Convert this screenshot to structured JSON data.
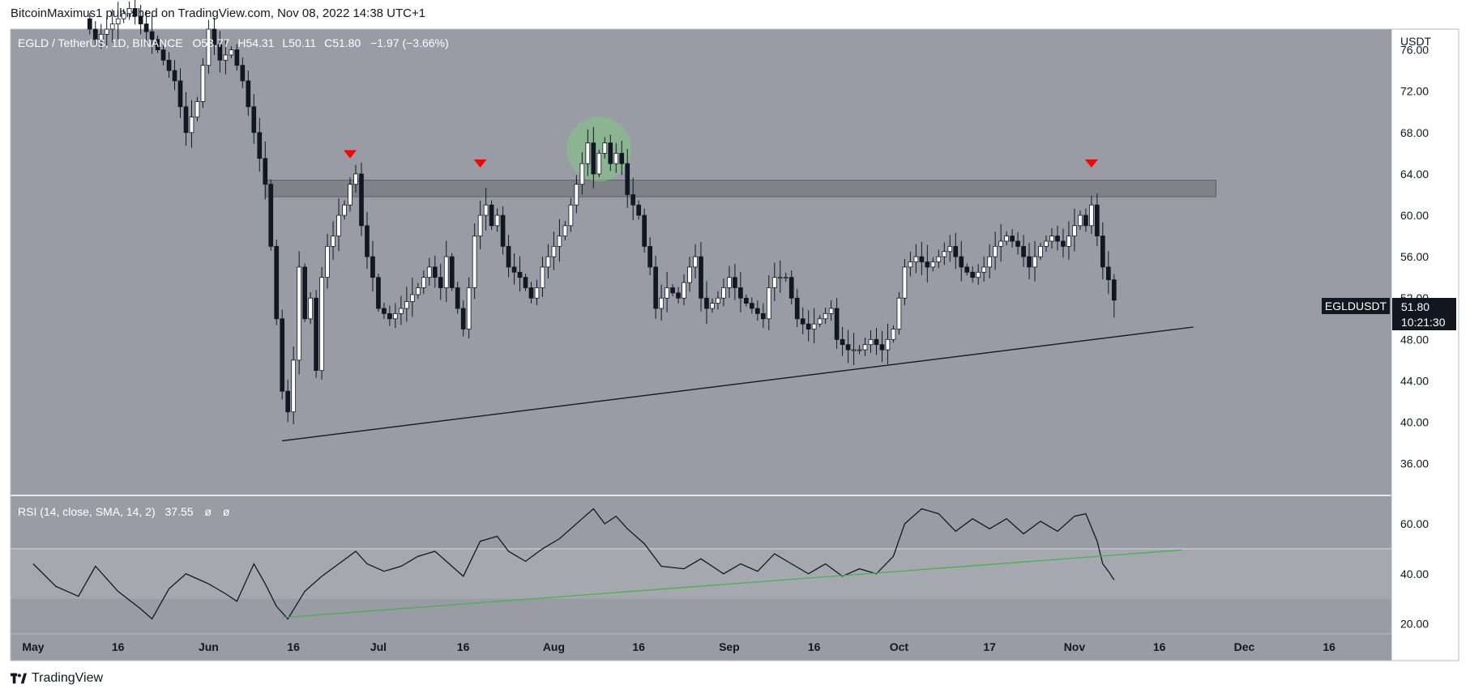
{
  "header": {
    "published_line": "BitcoinMaximus1 published on TradingView.com, Nov 08, 2022 14:38 UTC+1"
  },
  "footer": {
    "brand": "TradingView"
  },
  "legend": {
    "symbol": "EGLD / TetherUS, 1D, BINANCE",
    "ohlc": [
      {
        "key": "O",
        "value": "53.77"
      },
      {
        "key": "H",
        "value": "54.31"
      },
      {
        "key": "L",
        "value": "50.11"
      },
      {
        "key": "C",
        "value": "51.80"
      }
    ],
    "change": "−1.97 (−3.66%)"
  },
  "price_axis": {
    "currency": "USDT"
  },
  "last_price": {
    "symbol": "EGLDUSDT",
    "price": "51.80",
    "countdown": "10:21:30"
  },
  "rsi_legend": {
    "label": "RSI (14, close, SMA, 14, 2)",
    "value": "37.55",
    "extra": [
      "ø",
      "ø"
    ]
  },
  "colors": {
    "plot_bg": "#999ca4",
    "rsi_band": "#a5a8af",
    "up_candle": "#ffffff",
    "down_candle": "#131722",
    "resistance_zone": "#7b7e85",
    "marker_red": "#ff0000",
    "highlight_green": "#81c784",
    "rsi_trendline": "#4caf50"
  },
  "chart_data": [
    {
      "type": "candlestick",
      "title": "EGLD / TetherUS, 1D, BINANCE",
      "x_range": [
        "2022-04-27",
        "2022-12-27"
      ],
      "x_ticks": [
        {
          "date": "2022-05-01",
          "label": "May"
        },
        {
          "date": "2022-05-16",
          "label": "16"
        },
        {
          "date": "2022-06-01",
          "label": "Jun"
        },
        {
          "date": "2022-06-16",
          "label": "16"
        },
        {
          "date": "2022-07-01",
          "label": "Jul"
        },
        {
          "date": "2022-07-16",
          "label": "16"
        },
        {
          "date": "2022-08-01",
          "label": "Aug"
        },
        {
          "date": "2022-08-16",
          "label": "16"
        },
        {
          "date": "2022-09-01",
          "label": "Sep"
        },
        {
          "date": "2022-09-16",
          "label": "16"
        },
        {
          "date": "2022-10-01",
          "label": "Oct"
        },
        {
          "date": "2022-10-17",
          "label": "17"
        },
        {
          "date": "2022-11-01",
          "label": "Nov"
        },
        {
          "date": "2022-11-16",
          "label": "16"
        },
        {
          "date": "2022-12-01",
          "label": "Dec"
        },
        {
          "date": "2022-12-16",
          "label": "16"
        }
      ],
      "y_range": [
        33,
        78
      ],
      "y_ticks": [
        "36.00",
        "40.00",
        "44.00",
        "48.00",
        "52.00",
        "56.00",
        "60.00",
        "64.00",
        "68.00",
        "72.00",
        "76.00"
      ],
      "close_points": [
        {
          "date": "2022-05-10",
          "close": 79
        },
        {
          "date": "2022-05-12",
          "close": 77
        },
        {
          "date": "2022-05-18",
          "close": 80
        },
        {
          "date": "2022-05-22",
          "close": 77
        },
        {
          "date": "2022-05-26",
          "close": 73
        },
        {
          "date": "2022-05-28",
          "close": 68
        },
        {
          "date": "2022-05-30",
          "close": 71
        },
        {
          "date": "2022-06-01",
          "close": 78
        },
        {
          "date": "2022-06-03",
          "close": 75
        },
        {
          "date": "2022-06-05",
          "close": 76
        },
        {
          "date": "2022-06-07",
          "close": 73
        },
        {
          "date": "2022-06-09",
          "close": 68
        },
        {
          "date": "2022-06-11",
          "close": 63
        },
        {
          "date": "2022-06-12",
          "close": 57
        },
        {
          "date": "2022-06-13",
          "close": 50
        },
        {
          "date": "2022-06-14",
          "close": 43
        },
        {
          "date": "2022-06-15",
          "close": 41
        },
        {
          "date": "2022-06-16",
          "close": 46
        },
        {
          "date": "2022-06-17",
          "close": 55
        },
        {
          "date": "2022-06-18",
          "close": 50
        },
        {
          "date": "2022-06-19",
          "close": 52
        },
        {
          "date": "2022-06-20",
          "close": 45
        },
        {
          "date": "2022-06-21",
          "close": 54
        },
        {
          "date": "2022-06-22",
          "close": 57
        },
        {
          "date": "2022-06-23",
          "close": 58
        },
        {
          "date": "2022-06-24",
          "close": 60
        },
        {
          "date": "2022-06-25",
          "close": 61
        },
        {
          "date": "2022-06-26",
          "close": 63
        },
        {
          "date": "2022-06-27",
          "close": 64
        },
        {
          "date": "2022-06-28",
          "close": 59
        },
        {
          "date": "2022-06-29",
          "close": 56
        },
        {
          "date": "2022-06-30",
          "close": 54
        },
        {
          "date": "2022-07-01",
          "close": 51
        },
        {
          "date": "2022-07-03",
          "close": 50
        },
        {
          "date": "2022-07-05",
          "close": 51
        },
        {
          "date": "2022-07-08",
          "close": 53
        },
        {
          "date": "2022-07-10",
          "close": 55
        },
        {
          "date": "2022-07-12",
          "close": 53
        },
        {
          "date": "2022-07-13",
          "close": 56
        },
        {
          "date": "2022-07-14",
          "close": 53
        },
        {
          "date": "2022-07-15",
          "close": 51
        },
        {
          "date": "2022-07-16",
          "close": 49
        },
        {
          "date": "2022-07-17",
          "close": 53
        },
        {
          "date": "2022-07-18",
          "close": 58
        },
        {
          "date": "2022-07-19",
          "close": 60
        },
        {
          "date": "2022-07-20",
          "close": 61
        },
        {
          "date": "2022-07-21",
          "close": 59
        },
        {
          "date": "2022-07-22",
          "close": 60
        },
        {
          "date": "2022-07-23",
          "close": 57
        },
        {
          "date": "2022-07-24",
          "close": 55
        },
        {
          "date": "2022-07-26",
          "close": 54
        },
        {
          "date": "2022-07-28",
          "close": 52
        },
        {
          "date": "2022-07-29",
          "close": 53
        },
        {
          "date": "2022-07-30",
          "close": 55
        },
        {
          "date": "2022-08-01",
          "close": 57
        },
        {
          "date": "2022-08-03",
          "close": 59
        },
        {
          "date": "2022-08-05",
          "close": 63
        },
        {
          "date": "2022-08-06",
          "close": 65
        },
        {
          "date": "2022-08-07",
          "close": 67
        },
        {
          "date": "2022-08-08",
          "close": 64
        },
        {
          "date": "2022-08-09",
          "close": 66
        },
        {
          "date": "2022-08-10",
          "close": 67
        },
        {
          "date": "2022-08-11",
          "close": 65
        },
        {
          "date": "2022-08-12",
          "close": 66
        },
        {
          "date": "2022-08-13",
          "close": 65
        },
        {
          "date": "2022-08-14",
          "close": 62
        },
        {
          "date": "2022-08-15",
          "close": 61
        },
        {
          "date": "2022-08-16",
          "close": 60
        },
        {
          "date": "2022-08-17",
          "close": 57
        },
        {
          "date": "2022-08-18",
          "close": 55
        },
        {
          "date": "2022-08-19",
          "close": 51
        },
        {
          "date": "2022-08-21",
          "close": 53
        },
        {
          "date": "2022-08-23",
          "close": 52
        },
        {
          "date": "2022-08-25",
          "close": 55
        },
        {
          "date": "2022-08-26",
          "close": 56
        },
        {
          "date": "2022-08-27",
          "close": 52
        },
        {
          "date": "2022-08-28",
          "close": 51
        },
        {
          "date": "2022-08-30",
          "close": 52
        },
        {
          "date": "2022-09-01",
          "close": 54
        },
        {
          "date": "2022-09-03",
          "close": 52
        },
        {
          "date": "2022-09-05",
          "close": 51
        },
        {
          "date": "2022-09-07",
          "close": 50
        },
        {
          "date": "2022-09-08",
          "close": 53
        },
        {
          "date": "2022-09-09",
          "close": 54
        },
        {
          "date": "2022-09-11",
          "close": 54
        },
        {
          "date": "2022-09-12",
          "close": 52
        },
        {
          "date": "2022-09-13",
          "close": 50
        },
        {
          "date": "2022-09-15",
          "close": 49
        },
        {
          "date": "2022-09-17",
          "close": 50
        },
        {
          "date": "2022-09-19",
          "close": 51
        },
        {
          "date": "2022-09-20",
          "close": 48
        },
        {
          "date": "2022-09-22",
          "close": 47
        },
        {
          "date": "2022-09-24",
          "close": 47
        },
        {
          "date": "2022-09-26",
          "close": 48
        },
        {
          "date": "2022-09-28",
          "close": 47
        },
        {
          "date": "2022-09-30",
          "close": 49
        },
        {
          "date": "2022-10-01",
          "close": 52
        },
        {
          "date": "2022-10-02",
          "close": 55
        },
        {
          "date": "2022-10-04",
          "close": 56
        },
        {
          "date": "2022-10-06",
          "close": 55
        },
        {
          "date": "2022-10-08",
          "close": 56
        },
        {
          "date": "2022-10-10",
          "close": 57
        },
        {
          "date": "2022-10-12",
          "close": 55
        },
        {
          "date": "2022-10-14",
          "close": 54
        },
        {
          "date": "2022-10-16",
          "close": 55
        },
        {
          "date": "2022-10-18",
          "close": 57
        },
        {
          "date": "2022-10-20",
          "close": 58
        },
        {
          "date": "2022-10-22",
          "close": 57
        },
        {
          "date": "2022-10-24",
          "close": 55
        },
        {
          "date": "2022-10-26",
          "close": 57
        },
        {
          "date": "2022-10-28",
          "close": 58
        },
        {
          "date": "2022-10-30",
          "close": 57
        },
        {
          "date": "2022-11-01",
          "close": 59
        },
        {
          "date": "2022-11-02",
          "close": 60
        },
        {
          "date": "2022-11-03",
          "close": 59
        },
        {
          "date": "2022-11-04",
          "close": 61
        },
        {
          "date": "2022-11-05",
          "close": 58
        },
        {
          "date": "2022-11-06",
          "close": 55
        },
        {
          "date": "2022-11-07",
          "close": 53.77
        },
        {
          "date": "2022-11-08",
          "close": 51.8
        }
      ],
      "resistance_zone": {
        "from_date": "2022-06-11",
        "to_date": "2022-11-26",
        "low": 61.8,
        "high": 63.4
      },
      "support_line": [
        {
          "date": "2022-06-14",
          "price": 38.2
        },
        {
          "date": "2022-11-22",
          "price": 49.2
        }
      ],
      "red_markers": [
        {
          "date": "2022-06-26",
          "price": 65.2
        },
        {
          "date": "2022-07-19",
          "price": 64.3
        },
        {
          "date": "2022-11-04",
          "price": 64.3
        }
      ],
      "green_highlight": {
        "date": "2022-08-09",
        "price": 66.4
      }
    },
    {
      "type": "line",
      "title": "RSI (14, close, SMA, 14, 2)",
      "y_range": [
        16,
        71
      ],
      "y_ticks": [
        "20.00",
        "40.00",
        "60.00"
      ],
      "band": [
        30,
        50
      ],
      "last_value": 37.55,
      "values": [
        {
          "date": "2022-05-01",
          "v": 44
        },
        {
          "date": "2022-05-05",
          "v": 35
        },
        {
          "date": "2022-05-09",
          "v": 31
        },
        {
          "date": "2022-05-12",
          "v": 43
        },
        {
          "date": "2022-05-16",
          "v": 33
        },
        {
          "date": "2022-05-20",
          "v": 26
        },
        {
          "date": "2022-05-22",
          "v": 22
        },
        {
          "date": "2022-05-25",
          "v": 34
        },
        {
          "date": "2022-05-28",
          "v": 40
        },
        {
          "date": "2022-06-01",
          "v": 36
        },
        {
          "date": "2022-06-04",
          "v": 32
        },
        {
          "date": "2022-06-06",
          "v": 29
        },
        {
          "date": "2022-06-09",
          "v": 44
        },
        {
          "date": "2022-06-11",
          "v": 36
        },
        {
          "date": "2022-06-13",
          "v": 27
        },
        {
          "date": "2022-06-15",
          "v": 22
        },
        {
          "date": "2022-06-18",
          "v": 33
        },
        {
          "date": "2022-06-21",
          "v": 39
        },
        {
          "date": "2022-06-24",
          "v": 44
        },
        {
          "date": "2022-06-27",
          "v": 49
        },
        {
          "date": "2022-06-29",
          "v": 44
        },
        {
          "date": "2022-07-02",
          "v": 41
        },
        {
          "date": "2022-07-05",
          "v": 43
        },
        {
          "date": "2022-07-08",
          "v": 47
        },
        {
          "date": "2022-07-11",
          "v": 49
        },
        {
          "date": "2022-07-14",
          "v": 43
        },
        {
          "date": "2022-07-16",
          "v": 39
        },
        {
          "date": "2022-07-19",
          "v": 53
        },
        {
          "date": "2022-07-22",
          "v": 55
        },
        {
          "date": "2022-07-24",
          "v": 49
        },
        {
          "date": "2022-07-27",
          "v": 45
        },
        {
          "date": "2022-07-30",
          "v": 50
        },
        {
          "date": "2022-08-02",
          "v": 54
        },
        {
          "date": "2022-08-06",
          "v": 62
        },
        {
          "date": "2022-08-08",
          "v": 66
        },
        {
          "date": "2022-08-10",
          "v": 60
        },
        {
          "date": "2022-08-12",
          "v": 63
        },
        {
          "date": "2022-08-14",
          "v": 58
        },
        {
          "date": "2022-08-17",
          "v": 52
        },
        {
          "date": "2022-08-20",
          "v": 43
        },
        {
          "date": "2022-08-24",
          "v": 42
        },
        {
          "date": "2022-08-27",
          "v": 46
        },
        {
          "date": "2022-08-31",
          "v": 40
        },
        {
          "date": "2022-09-03",
          "v": 44
        },
        {
          "date": "2022-09-06",
          "v": 41
        },
        {
          "date": "2022-09-09",
          "v": 48
        },
        {
          "date": "2022-09-12",
          "v": 44
        },
        {
          "date": "2022-09-15",
          "v": 40
        },
        {
          "date": "2022-09-18",
          "v": 44
        },
        {
          "date": "2022-09-21",
          "v": 39
        },
        {
          "date": "2022-09-24",
          "v": 42
        },
        {
          "date": "2022-09-27",
          "v": 40
        },
        {
          "date": "2022-09-30",
          "v": 47
        },
        {
          "date": "2022-10-02",
          "v": 60
        },
        {
          "date": "2022-10-05",
          "v": 66
        },
        {
          "date": "2022-10-08",
          "v": 64
        },
        {
          "date": "2022-10-11",
          "v": 57
        },
        {
          "date": "2022-10-14",
          "v": 62
        },
        {
          "date": "2022-10-17",
          "v": 58
        },
        {
          "date": "2022-10-20",
          "v": 62
        },
        {
          "date": "2022-10-23",
          "v": 56
        },
        {
          "date": "2022-10-26",
          "v": 61
        },
        {
          "date": "2022-10-29",
          "v": 57
        },
        {
          "date": "2022-11-01",
          "v": 63
        },
        {
          "date": "2022-11-03",
          "v": 64
        },
        {
          "date": "2022-11-05",
          "v": 53
        },
        {
          "date": "2022-11-06",
          "v": 44
        },
        {
          "date": "2022-11-07",
          "v": 41
        },
        {
          "date": "2022-11-08",
          "v": 37.55
        }
      ],
      "trendline": [
        {
          "date": "2022-06-14",
          "v": 22.5
        },
        {
          "date": "2022-11-20",
          "v": 49.5
        }
      ]
    }
  ]
}
